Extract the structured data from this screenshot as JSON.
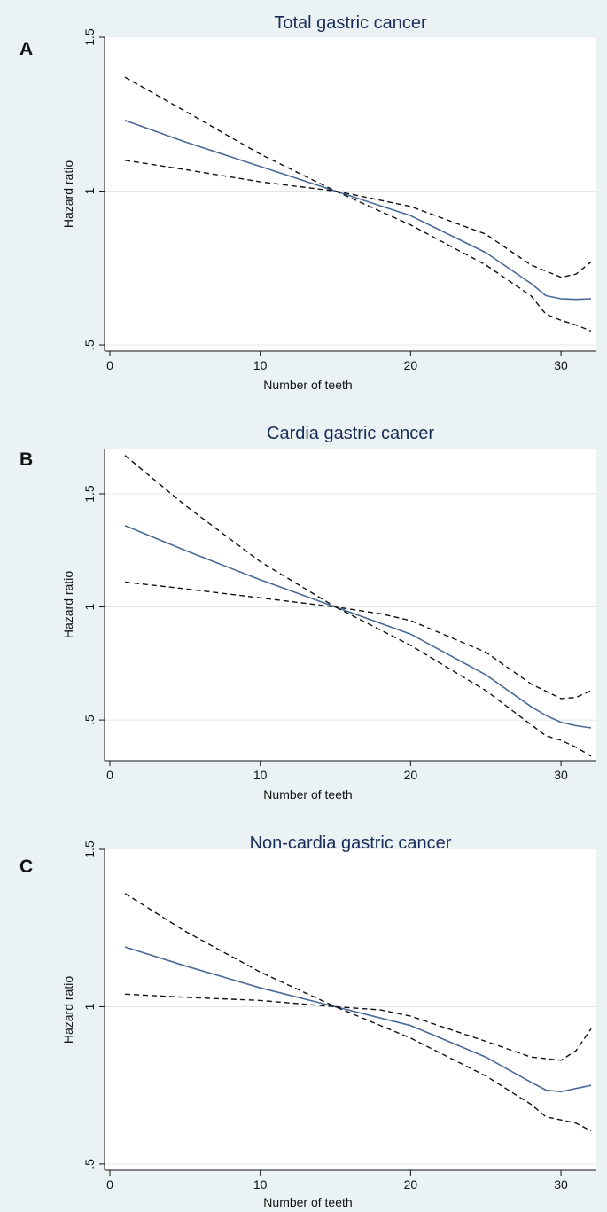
{
  "chart_data": [
    {
      "panel": "A",
      "type": "line",
      "title": "Total gastric cancer",
      "xlabel": "Number of teeth",
      "ylabel": "Hazard ratio",
      "xlim": [
        0,
        32
      ],
      "ylim": [
        0.5,
        1.5
      ],
      "ylim_display": [
        0.48,
        1.5
      ],
      "xticks": [
        0,
        10,
        20,
        30
      ],
      "xtick_labels": [
        "0",
        "10",
        "20",
        "30"
      ],
      "yticks": [
        0.5,
        1,
        1.5
      ],
      "ytick_labels": [
        ".5",
        "1",
        "1.5"
      ],
      "gridlines_y": [
        0.5,
        1
      ],
      "series": [
        {
          "name": "hazard ratio",
          "style": "solid",
          "color": "#4a6a96",
          "x": [
            1,
            5,
            10,
            15,
            20,
            25,
            28,
            29,
            30,
            31,
            32
          ],
          "y": [
            1.23,
            1.16,
            1.08,
            1.0,
            0.92,
            0.8,
            0.7,
            0.66,
            0.65,
            0.648,
            0.65
          ]
        },
        {
          "name": "upper 95% CI",
          "style": "dashed",
          "color": "#111111",
          "x": [
            1,
            5,
            10,
            15,
            18,
            20,
            25,
            28,
            30,
            31,
            32
          ],
          "y": [
            1.37,
            1.26,
            1.12,
            1.0,
            0.97,
            0.95,
            0.86,
            0.76,
            0.72,
            0.73,
            0.77
          ]
        },
        {
          "name": "lower 95% CI",
          "style": "dashed",
          "color": "#111111",
          "x": [
            1,
            5,
            10,
            15,
            20,
            25,
            28,
            29,
            30,
            31,
            32
          ],
          "y": [
            1.1,
            1.07,
            1.03,
            1.0,
            0.89,
            0.76,
            0.66,
            0.6,
            0.58,
            0.565,
            0.545
          ]
        }
      ]
    },
    {
      "panel": "B",
      "type": "line",
      "title": "Cardia gastric cancer",
      "xlabel": "Number of teeth",
      "ylabel": "Hazard ratio",
      "xlim": [
        0,
        32
      ],
      "ylim": [
        0.35,
        1.7
      ],
      "ylim_display": [
        0.32,
        1.7
      ],
      "xticks": [
        0,
        10,
        20,
        30
      ],
      "xtick_labels": [
        "0",
        "10",
        "20",
        "30"
      ],
      "yticks": [
        0.5,
        1,
        1.5
      ],
      "ytick_labels": [
        ".5",
        "1",
        "1.5"
      ],
      "gridlines_y": [
        0.5,
        1,
        1.5
      ],
      "series": [
        {
          "name": "hazard ratio",
          "style": "solid",
          "color": "#4a6a96",
          "x": [
            1,
            5,
            10,
            15,
            20,
            25,
            28,
            29,
            30,
            31,
            32
          ],
          "y": [
            1.36,
            1.25,
            1.12,
            1.0,
            0.88,
            0.7,
            0.56,
            0.52,
            0.49,
            0.475,
            0.465
          ]
        },
        {
          "name": "upper 95% CI",
          "style": "dashed",
          "color": "#111111",
          "x": [
            1,
            5,
            10,
            15,
            18,
            20,
            25,
            28,
            30,
            31,
            32
          ],
          "y": [
            1.67,
            1.45,
            1.2,
            1.0,
            0.97,
            0.94,
            0.8,
            0.66,
            0.595,
            0.6,
            0.63
          ]
        },
        {
          "name": "lower 95% CI",
          "style": "dashed",
          "color": "#111111",
          "x": [
            1,
            5,
            10,
            15,
            20,
            25,
            28,
            29,
            30,
            31,
            32
          ],
          "y": [
            1.11,
            1.08,
            1.04,
            1.0,
            0.83,
            0.63,
            0.48,
            0.43,
            0.41,
            0.38,
            0.34
          ]
        }
      ]
    },
    {
      "panel": "C",
      "type": "line",
      "title": "Non-cardia gastric cancer",
      "xlabel": "Number of teeth",
      "ylabel": "Hazard ratio",
      "xlim": [
        0,
        32
      ],
      "ylim": [
        0.5,
        1.5
      ],
      "ylim_display": [
        0.48,
        1.5
      ],
      "xticks": [
        0,
        10,
        20,
        30
      ],
      "xtick_labels": [
        "0",
        "10",
        "20",
        "30"
      ],
      "yticks": [
        0.5,
        1,
        1.5
      ],
      "ytick_labels": [
        ".5",
        "1",
        "1.5"
      ],
      "gridlines_y": [
        0.5,
        1
      ],
      "series": [
        {
          "name": "hazard ratio",
          "style": "solid",
          "color": "#4a6a96",
          "x": [
            1,
            5,
            10,
            15,
            20,
            25,
            28,
            29,
            30,
            31,
            32
          ],
          "y": [
            1.19,
            1.13,
            1.06,
            1.0,
            0.94,
            0.84,
            0.76,
            0.735,
            0.73,
            0.74,
            0.75
          ]
        },
        {
          "name": "upper 95% CI",
          "style": "dashed",
          "color": "#111111",
          "x": [
            1,
            5,
            10,
            15,
            18,
            20,
            25,
            28,
            30,
            31,
            32
          ],
          "y": [
            1.36,
            1.24,
            1.11,
            1.0,
            0.99,
            0.97,
            0.89,
            0.84,
            0.83,
            0.86,
            0.93
          ]
        },
        {
          "name": "lower 95% CI",
          "style": "dashed",
          "color": "#111111",
          "x": [
            1,
            5,
            10,
            15,
            20,
            25,
            28,
            29,
            30,
            31,
            32
          ],
          "y": [
            1.04,
            1.03,
            1.02,
            1.0,
            0.9,
            0.78,
            0.69,
            0.65,
            0.64,
            0.63,
            0.605
          ]
        }
      ]
    }
  ]
}
